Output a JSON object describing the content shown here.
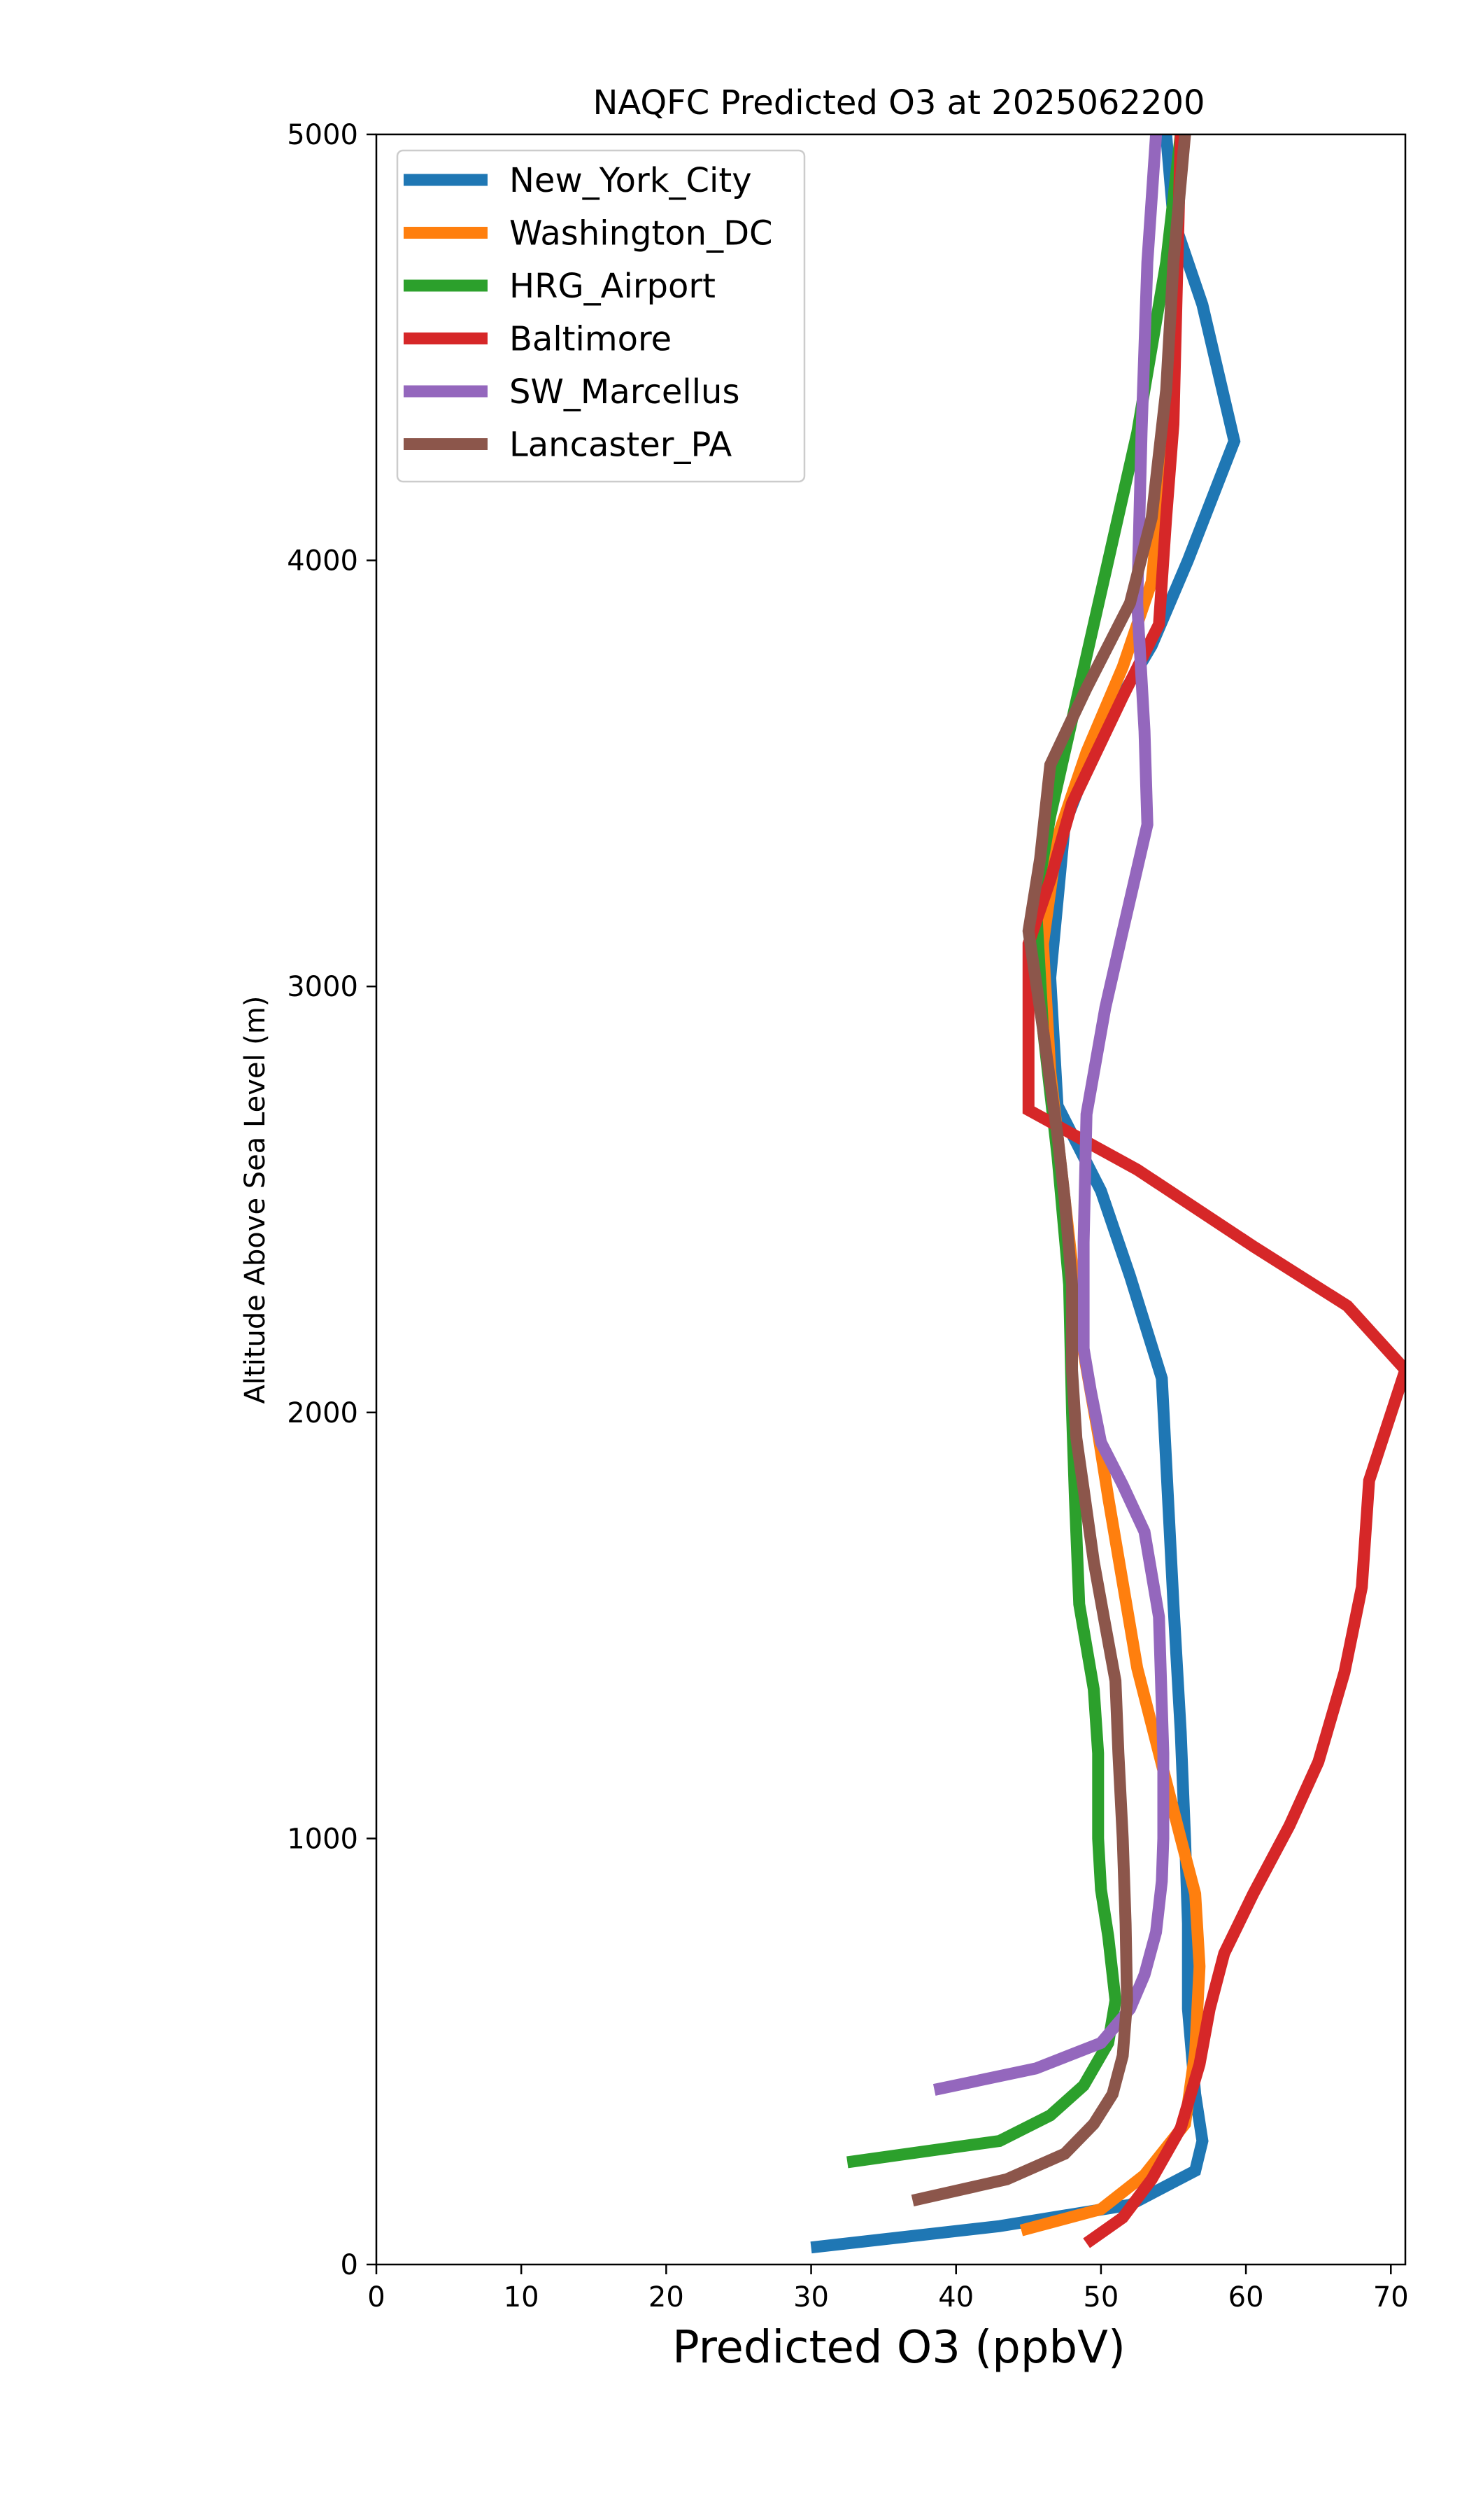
{
  "chart_data": {
    "type": "line",
    "title": "NAQFC Predicted O3 at 2025062200",
    "xlabel": "Predicted O3 (ppbV)",
    "ylabel": "Altitude Above Sea Level (m)",
    "xlim": [
      0,
      71
    ],
    "ylim": [
      0,
      5000
    ],
    "xticks": [
      "0",
      "10",
      "20",
      "30",
      "40",
      "50",
      "60",
      "70"
    ],
    "yticks": [
      "0",
      "1000",
      "2000",
      "3000",
      "4000",
      "5000"
    ],
    "grid": false,
    "legend_position": "top-left",
    "series": [
      {
        "name": "New_York_City",
        "color": "#1f77b4",
        "points": [
          [
            30,
            40
          ],
          [
            43,
            90
          ],
          [
            52,
            140
          ],
          [
            56.5,
            220
          ],
          [
            57,
            290
          ],
          [
            56.5,
            400
          ],
          [
            56,
            600
          ],
          [
            56,
            800
          ],
          [
            55.8,
            1000
          ],
          [
            55.5,
            1250
          ],
          [
            55,
            1550
          ],
          [
            54.2,
            2080
          ],
          [
            52,
            2320
          ],
          [
            50,
            2520
          ],
          [
            47,
            2720
          ],
          [
            46.5,
            3020
          ],
          [
            47.5,
            3380
          ],
          [
            50,
            3600
          ],
          [
            53.5,
            3800
          ],
          [
            56,
            4000
          ],
          [
            59.2,
            4280
          ],
          [
            57,
            4600
          ],
          [
            55,
            4800
          ],
          [
            54.5,
            5000
          ]
        ]
      },
      {
        "name": "Washington_DC",
        "color": "#ff7f0e",
        "points": [
          [
            44.5,
            80
          ],
          [
            50,
            130
          ],
          [
            53,
            210
          ],
          [
            55.8,
            330
          ],
          [
            56.5,
            500
          ],
          [
            56.8,
            700
          ],
          [
            56.5,
            870
          ],
          [
            55.5,
            1000
          ],
          [
            54,
            1200
          ],
          [
            52.5,
            1400
          ],
          [
            51.5,
            1600
          ],
          [
            50.5,
            1800
          ],
          [
            49.8,
            1950
          ],
          [
            48.5,
            2200
          ],
          [
            47.5,
            2500
          ],
          [
            46.5,
            2800
          ],
          [
            46,
            3100
          ],
          [
            47,
            3350
          ],
          [
            49,
            3550
          ],
          [
            51.5,
            3750
          ],
          [
            53.5,
            3950
          ],
          [
            54.5,
            4300
          ],
          [
            55,
            4700
          ],
          [
            55.5,
            5000
          ]
        ]
      },
      {
        "name": "HRG_Airport",
        "color": "#2ca02c",
        "points": [
          [
            32.5,
            240
          ],
          [
            43,
            290
          ],
          [
            46.5,
            350
          ],
          [
            48.8,
            420
          ],
          [
            50.5,
            520
          ],
          [
            51,
            620
          ],
          [
            50.5,
            770
          ],
          [
            50,
            880
          ],
          [
            49.8,
            1000
          ],
          [
            49.8,
            1200
          ],
          [
            49.5,
            1350
          ],
          [
            48.5,
            1550
          ],
          [
            48.2,
            1800
          ],
          [
            48,
            2000
          ],
          [
            47.8,
            2300
          ],
          [
            47,
            2600
          ],
          [
            46,
            2900
          ],
          [
            45.5,
            3200
          ],
          [
            46.5,
            3400
          ],
          [
            48.5,
            3700
          ],
          [
            50.5,
            4000
          ],
          [
            52.5,
            4300
          ],
          [
            54.5,
            4700
          ],
          [
            55.5,
            5000
          ]
        ]
      },
      {
        "name": "Baltimore",
        "color": "#d62728",
        "points": [
          [
            49,
            50
          ],
          [
            51.5,
            110
          ],
          [
            53.5,
            200
          ],
          [
            55.5,
            320
          ],
          [
            56.8,
            470
          ],
          [
            57.5,
            600
          ],
          [
            58.5,
            730
          ],
          [
            60.5,
            870
          ],
          [
            63,
            1030
          ],
          [
            65,
            1180
          ],
          [
            66.8,
            1390
          ],
          [
            68,
            1590
          ],
          [
            68.5,
            1840
          ],
          [
            71,
            2100
          ],
          [
            67,
            2250
          ],
          [
            60.5,
            2390
          ],
          [
            52.5,
            2570
          ],
          [
            45,
            2710
          ],
          [
            45,
            3000
          ],
          [
            45,
            3100
          ],
          [
            46.5,
            3250
          ],
          [
            48,
            3430
          ],
          [
            51.5,
            3680
          ],
          [
            54,
            3850
          ],
          [
            54.5,
            4100
          ],
          [
            55,
            4320
          ],
          [
            55.2,
            4600
          ],
          [
            55.5,
            5000
          ]
        ]
      },
      {
        "name": "SW_Marcellus",
        "color": "#9467bd",
        "points": [
          [
            38.5,
            410
          ],
          [
            45.5,
            460
          ],
          [
            50,
            520
          ],
          [
            52,
            600
          ],
          [
            53,
            680
          ],
          [
            53.8,
            780
          ],
          [
            54.2,
            900
          ],
          [
            54.3,
            1000
          ],
          [
            54.3,
            1200
          ],
          [
            54,
            1520
          ],
          [
            53,
            1720
          ],
          [
            51.5,
            1830
          ],
          [
            50,
            1930
          ],
          [
            49.3,
            2050
          ],
          [
            48.8,
            2150
          ],
          [
            48.8,
            2400
          ],
          [
            49,
            2700
          ],
          [
            50.3,
            2950
          ],
          [
            51.5,
            3130
          ],
          [
            53.2,
            3380
          ],
          [
            53,
            3600
          ],
          [
            52.5,
            3900
          ],
          [
            52.8,
            4300
          ],
          [
            53.2,
            4700
          ],
          [
            53.8,
            5000
          ]
        ]
      },
      {
        "name": "Lancaster_PA",
        "color": "#8c564b",
        "points": [
          [
            37,
            150
          ],
          [
            43.5,
            200
          ],
          [
            47.5,
            260
          ],
          [
            49.5,
            330
          ],
          [
            50.8,
            400
          ],
          [
            51.5,
            490
          ],
          [
            51.8,
            620
          ],
          [
            51.7,
            800
          ],
          [
            51.5,
            1000
          ],
          [
            51.2,
            1200
          ],
          [
            51,
            1370
          ],
          [
            50.3,
            1500
          ],
          [
            49.5,
            1650
          ],
          [
            48.8,
            1820
          ],
          [
            48.3,
            1940
          ],
          [
            48,
            2100
          ],
          [
            48,
            2300
          ],
          [
            47.5,
            2500
          ],
          [
            47,
            2650
          ],
          [
            46,
            2900
          ],
          [
            45,
            3130
          ],
          [
            45.8,
            3300
          ],
          [
            46.5,
            3520
          ],
          [
            49,
            3700
          ],
          [
            52,
            3900
          ],
          [
            53.5,
            4100
          ],
          [
            54.5,
            4400
          ],
          [
            55,
            4700
          ],
          [
            55.8,
            5000
          ]
        ]
      }
    ]
  }
}
